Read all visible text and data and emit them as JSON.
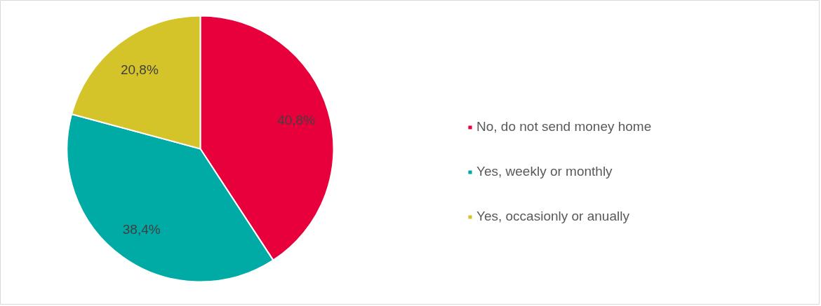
{
  "chart_data": {
    "type": "pie",
    "categories": [
      "No, do not send money home",
      "Yes, weekly or monthly",
      "Yes, occasionly or anually"
    ],
    "values": [
      40.8,
      38.4,
      20.8
    ],
    "colors": [
      "#e8003d",
      "#00aaa5",
      "#d4c42a"
    ],
    "value_labels": [
      "40,8%",
      "38,4%",
      "20,8%"
    ],
    "legend": "right"
  }
}
